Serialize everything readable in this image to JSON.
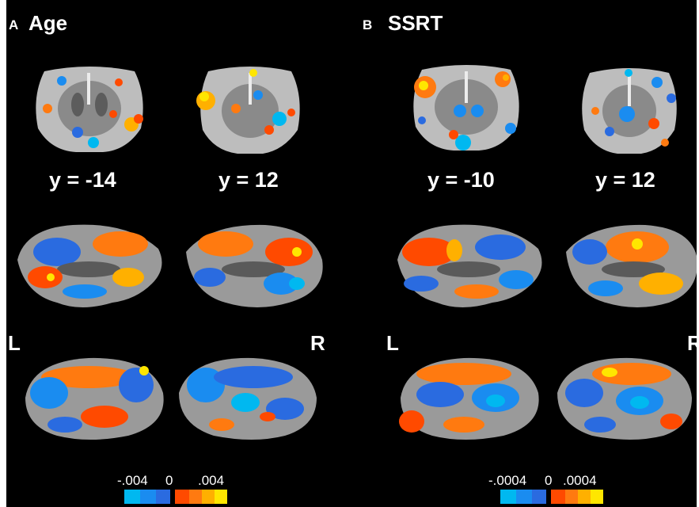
{
  "panels": {
    "a": {
      "letter": "A",
      "title": "Age",
      "coords": [
        "y = -14",
        "y = 12"
      ],
      "hemi_left": "L",
      "hemi_right": "R",
      "colorbar": {
        "min": "-.004",
        "zero": "0",
        "max": ".004"
      }
    },
    "b": {
      "letter": "B",
      "title": "SSRT",
      "coords": [
        "y = -10",
        "y = 12"
      ],
      "hemi_left": "L",
      "hemi_right": "R",
      "colorbar": {
        "min": "-.0004",
        "zero": "0",
        "max": ".0004"
      }
    }
  },
  "colors": {
    "background": "#000000",
    "cortex": "#9a9a9a",
    "negative": [
      "#00b8f0",
      "#1a8cf0",
      "#2a6be0"
    ],
    "positive": [
      "#ff4a00",
      "#ff7a10",
      "#ffb000",
      "#ffe600"
    ]
  }
}
